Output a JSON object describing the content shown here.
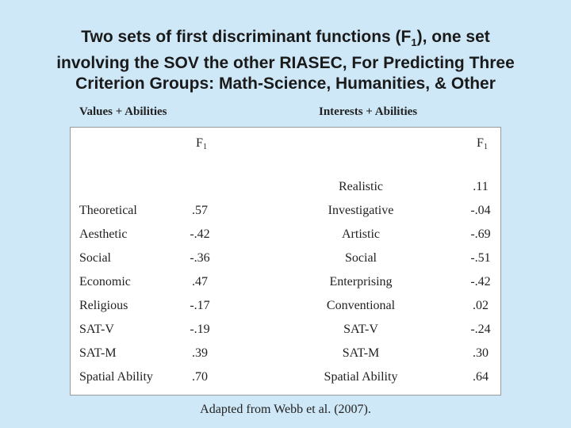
{
  "title": {
    "line1": {
      "text": "Two sets of first discriminant functions (F",
      "subscript": "1",
      "after": "), one set"
    },
    "line2": "involving the SOV the other RIASEC, For Predicting Three",
    "line3": "Criterion Groups: Math-Science, Humanities, & Other"
  },
  "left": {
    "heading": "Values + Abilities",
    "column": {
      "label": "F",
      "subscript": "1"
    },
    "rows": [
      [
        "Theoretical",
        ".57"
      ],
      [
        "Aesthetic",
        "-.42"
      ],
      [
        "Social",
        "-.36"
      ],
      [
        "Economic",
        ".47"
      ],
      [
        "Religious",
        "-.17"
      ],
      [
        "SAT-V",
        "-.19"
      ],
      [
        "SAT-M",
        ".39"
      ],
      [
        "Spatial Ability",
        ".70"
      ]
    ]
  },
  "right": {
    "heading": "Interests + Abilities",
    "column": {
      "label": "F",
      "subscript": "1"
    },
    "rows": [
      [
        "Realistic",
        ".11"
      ],
      [
        "Investigative",
        "-.04"
      ],
      [
        "Artistic",
        "-.69"
      ],
      [
        "Social",
        "-.51"
      ],
      [
        "Enterprising",
        "-.42"
      ],
      [
        "Conventional",
        ".02"
      ],
      [
        "SAT-V",
        "-.24"
      ],
      [
        "SAT-M",
        ".30"
      ],
      [
        "Spatial Ability",
        ".64"
      ]
    ]
  },
  "source": "Adapted from Webb et al. (2007)."
}
